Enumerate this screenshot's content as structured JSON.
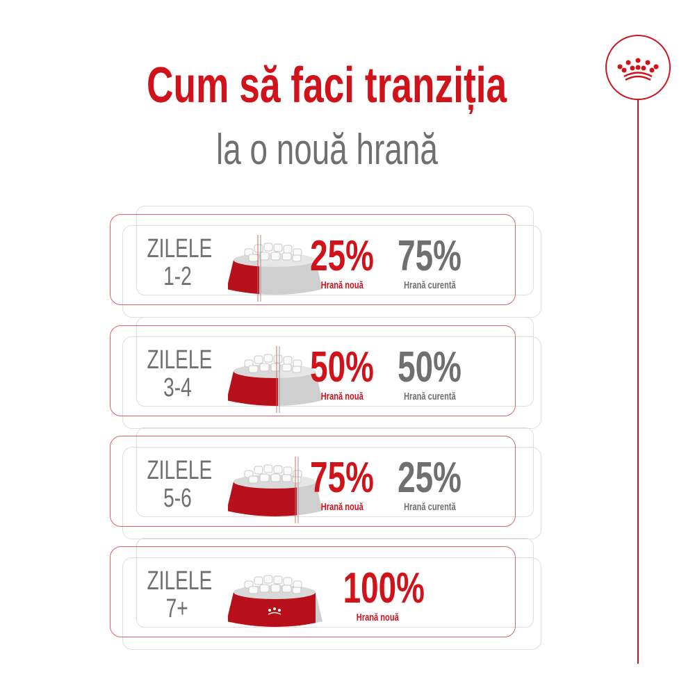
{
  "title": {
    "line1": "Cum să faci tranziția",
    "line2": "la o nouă hrană"
  },
  "colors": {
    "accent": "#d0121b",
    "text_gray": "#6f6f6f"
  },
  "logo": {
    "icon": "crown-icon"
  },
  "steps": [
    {
      "day_label": "ZILELE",
      "days": "1-2",
      "new_pct": "25%",
      "new_label": "Hrană nouă",
      "current_pct": "75%",
      "current_label": "Hrană curentă",
      "new_fraction": 0.25
    },
    {
      "day_label": "ZILELE",
      "days": "3-4",
      "new_pct": "50%",
      "new_label": "Hrană nouă",
      "current_pct": "50%",
      "current_label": "Hrană curentă",
      "new_fraction": 0.5
    },
    {
      "day_label": "ZILELE",
      "days": "5-6",
      "new_pct": "75%",
      "new_label": "Hrană nouă",
      "current_pct": "25%",
      "current_label": "Hrană curentă",
      "new_fraction": 0.75
    },
    {
      "day_label": "ZILELE",
      "days": "7+",
      "new_pct": "100%",
      "new_label": "Hrană nouă",
      "new_fraction": 1.0
    }
  ]
}
